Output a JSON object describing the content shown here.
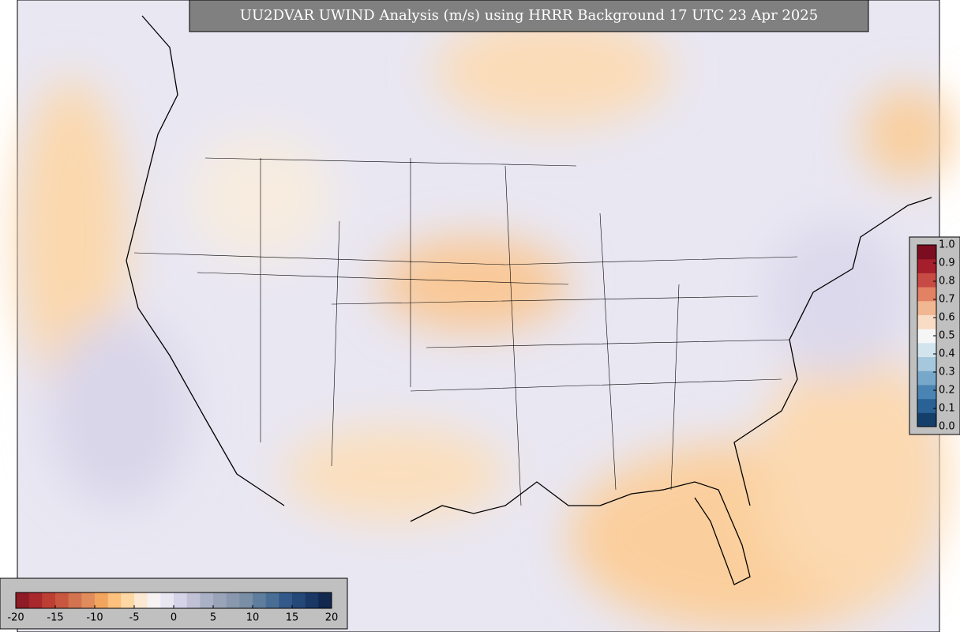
{
  "title": "UU2DVAR UWIND Analysis (m/s) using HRRR Background 17 UTC 23 Apr 2025",
  "wind_colorbar": {
    "range": [
      -20,
      20
    ],
    "ticks": [
      -20,
      -15,
      -10,
      -5,
      0,
      5,
      10,
      15,
      20
    ],
    "colors": [
      "#8e1b25",
      "#a8282b",
      "#bd3f33",
      "#c9573f",
      "#d37350",
      "#e08c5c",
      "#f2a55f",
      "#fbc17d",
      "#fdd7a4",
      "#fbe9d3",
      "#f7f3f3",
      "#e7e6f1",
      "#d4d3e8",
      "#c1c1d6",
      "#aab0c6",
      "#9aa4b8",
      "#8998ad",
      "#7a8ea5",
      "#5f7e9e",
      "#496e95",
      "#33598a",
      "#244878",
      "#1a3766",
      "#12284f"
    ]
  },
  "fraction_colorbar": {
    "range": [
      0,
      1
    ],
    "ticks": [
      {
        "value": 0,
        "label": "0.0"
      },
      0.1,
      0.2,
      0.3,
      0.4,
      0.5,
      0.6,
      0.7,
      0.8,
      0.9,
      {
        "value": 1,
        "label": "1.0"
      }
    ],
    "colors": [
      "#143f6b",
      "#2a6296",
      "#4a84b2",
      "#78a8c9",
      "#a6c8dc",
      "#d2e4ee",
      "#f6f6f6",
      "#f8dcc6",
      "#f1b692",
      "#e28163",
      "#c84a44",
      "#a51e2b",
      "#7a0d1f"
    ]
  }
}
